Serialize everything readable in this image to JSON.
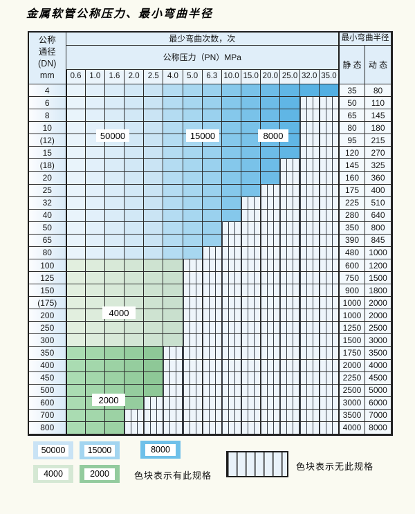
{
  "title": "金属软管公称压力、最小弯曲半径",
  "table": {
    "header": {
      "dn_label_lines": [
        "公称",
        "通径",
        "(DN)",
        "mm"
      ],
      "bend_cycles_label": "最少弯曲次数，次",
      "pressure_label": "公称压力（PN）MPa",
      "pressure_columns": [
        "0.6",
        "1.0",
        "1.6",
        "2.0",
        "2.5",
        "4.0",
        "5.0",
        "6.3",
        "10.0",
        "15.0",
        "20.0",
        "25.0",
        "32.0",
        "35.0"
      ],
      "radius_label": "最小弯曲半径",
      "static_label": "静 态",
      "dynamic_label": "动 态"
    },
    "rows": [
      {
        "dn": "4",
        "zone": "blue",
        "last_col": 13,
        "static": "35",
        "dynamic": "80"
      },
      {
        "dn": "6",
        "zone": "blue",
        "last_col": 11,
        "static": "50",
        "dynamic": "110"
      },
      {
        "dn": "8",
        "zone": "blue",
        "last_col": 11,
        "static": "65",
        "dynamic": "145"
      },
      {
        "dn": "10",
        "zone": "blue",
        "last_col": 11,
        "static": "80",
        "dynamic": "180"
      },
      {
        "dn": "(12)",
        "zone": "blue",
        "last_col": 11,
        "static": "95",
        "dynamic": "215"
      },
      {
        "dn": "15",
        "zone": "blue",
        "last_col": 11,
        "static": "120",
        "dynamic": "270"
      },
      {
        "dn": "(18)",
        "zone": "blue",
        "last_col": 10,
        "static": "145",
        "dynamic": "325"
      },
      {
        "dn": "20",
        "zone": "blue",
        "last_col": 10,
        "static": "160",
        "dynamic": "360"
      },
      {
        "dn": "25",
        "zone": "blue",
        "last_col": 9,
        "static": "175",
        "dynamic": "400"
      },
      {
        "dn": "32",
        "zone": "blue",
        "last_col": 8,
        "static": "225",
        "dynamic": "510"
      },
      {
        "dn": "40",
        "zone": "blue",
        "last_col": 8,
        "static": "280",
        "dynamic": "640"
      },
      {
        "dn": "50",
        "zone": "blue",
        "last_col": 7,
        "static": "350",
        "dynamic": "800"
      },
      {
        "dn": "65",
        "zone": "blue",
        "last_col": 7,
        "static": "390",
        "dynamic": "845"
      },
      {
        "dn": "80",
        "zone": "blue",
        "last_col": 6,
        "static": "480",
        "dynamic": "1000"
      },
      {
        "dn": "100",
        "zone": "green_light",
        "last_col": 5,
        "static": "600",
        "dynamic": "1200"
      },
      {
        "dn": "125",
        "zone": "green_light",
        "last_col": 5,
        "static": "750",
        "dynamic": "1500"
      },
      {
        "dn": "150",
        "zone": "green_light",
        "last_col": 5,
        "static": "900",
        "dynamic": "1800"
      },
      {
        "dn": "(175)",
        "zone": "green_light",
        "last_col": 5,
        "static": "1000",
        "dynamic": "2000"
      },
      {
        "dn": "200",
        "zone": "green_light",
        "last_col": 5,
        "static": "1000",
        "dynamic": "2000"
      },
      {
        "dn": "250",
        "zone": "green_light",
        "last_col": 5,
        "static": "1250",
        "dynamic": "2500"
      },
      {
        "dn": "300",
        "zone": "green_light",
        "last_col": 5,
        "static": "1500",
        "dynamic": "3000"
      },
      {
        "dn": "350",
        "zone": "green_dark",
        "last_col": 4,
        "static": "1750",
        "dynamic": "3500"
      },
      {
        "dn": "400",
        "zone": "green_dark",
        "last_col": 4,
        "static": "2000",
        "dynamic": "4000"
      },
      {
        "dn": "450",
        "zone": "green_dark",
        "last_col": 4,
        "static": "2250",
        "dynamic": "4500"
      },
      {
        "dn": "500",
        "zone": "green_dark",
        "last_col": 4,
        "static": "2500",
        "dynamic": "5000"
      },
      {
        "dn": "600",
        "zone": "green_dark",
        "last_col": 3,
        "static": "3000",
        "dynamic": "6000"
      },
      {
        "dn": "700",
        "zone": "green_dark",
        "last_col": 2,
        "static": "3500",
        "dynamic": "7000"
      },
      {
        "dn": "800",
        "zone": "green_dark",
        "last_col": 2,
        "static": "4000",
        "dynamic": "8000"
      }
    ],
    "overlay_labels": [
      "50000",
      "15000",
      "8000",
      "4000",
      "2000"
    ]
  },
  "legend": {
    "has_spec_items": [
      {
        "label": "50000",
        "color": "#c9e3f5"
      },
      {
        "label": "15000",
        "color": "#a3d5f0"
      },
      {
        "label": "8000",
        "color": "#6fc0e9"
      },
      {
        "label": "4000",
        "color": "#d5e8d4"
      },
      {
        "label": "2000",
        "color": "#93cb9e"
      }
    ],
    "has_spec_text": "色块表示有此规格",
    "no_spec_text": "色块表示无此规格"
  },
  "colors": {
    "band_50000": "#c9e3f5",
    "band_15000": "#a3d5f0",
    "band_8000": "#62b9e6",
    "band_4000": "#d5e8d4",
    "band_2000": "#9bd1a5",
    "hatch_bg": "#eef5fb",
    "grid_line": "#2b2b2b"
  }
}
